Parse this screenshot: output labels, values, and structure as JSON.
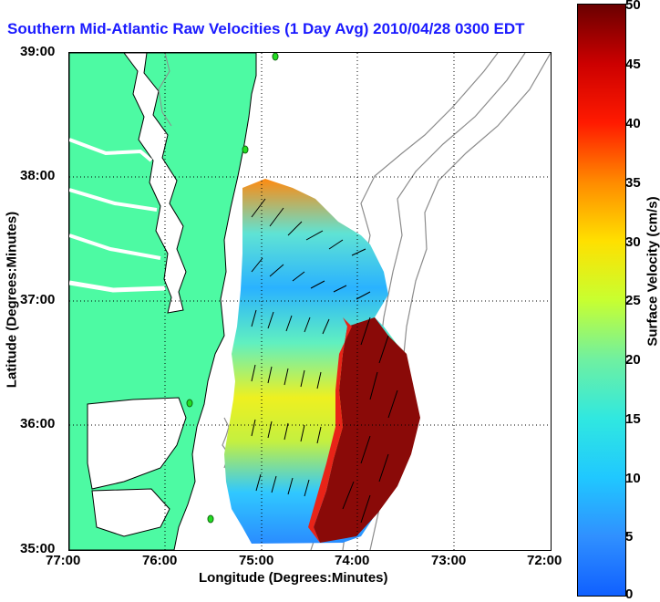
{
  "title": "Southern Mid-Atlantic Raw Velocities (1 Day Avg) 2010/04/28 0300 EDT",
  "axes": {
    "xlabel": "Longitude (Degrees:Minutes)",
    "ylabel": "Latitude (Degrees:Minutes)",
    "x_ticks": [
      "77:00",
      "76:00",
      "75:00",
      "74:00",
      "73:00",
      "72:00"
    ],
    "y_ticks": [
      "39:00",
      "38:00",
      "37:00",
      "36:00",
      "35:00"
    ]
  },
  "colorbar": {
    "label": "Surface Velocity (cm/s)",
    "ticks": [
      "50",
      "45",
      "40",
      "35",
      "30",
      "25",
      "20",
      "15",
      "10",
      "5",
      "0"
    ],
    "range": [
      0,
      50
    ]
  },
  "colors": {
    "land": "#4dfaa3",
    "coastline": "#000000",
    "bathymetry": "#8c8c8c",
    "title": "#1a1aff",
    "station": "#22dd22"
  },
  "map": {
    "lon_range_west": [
      72,
      77
    ],
    "lat_range": [
      35,
      39
    ],
    "grid": true,
    "map_type": "current velocity field"
  }
}
